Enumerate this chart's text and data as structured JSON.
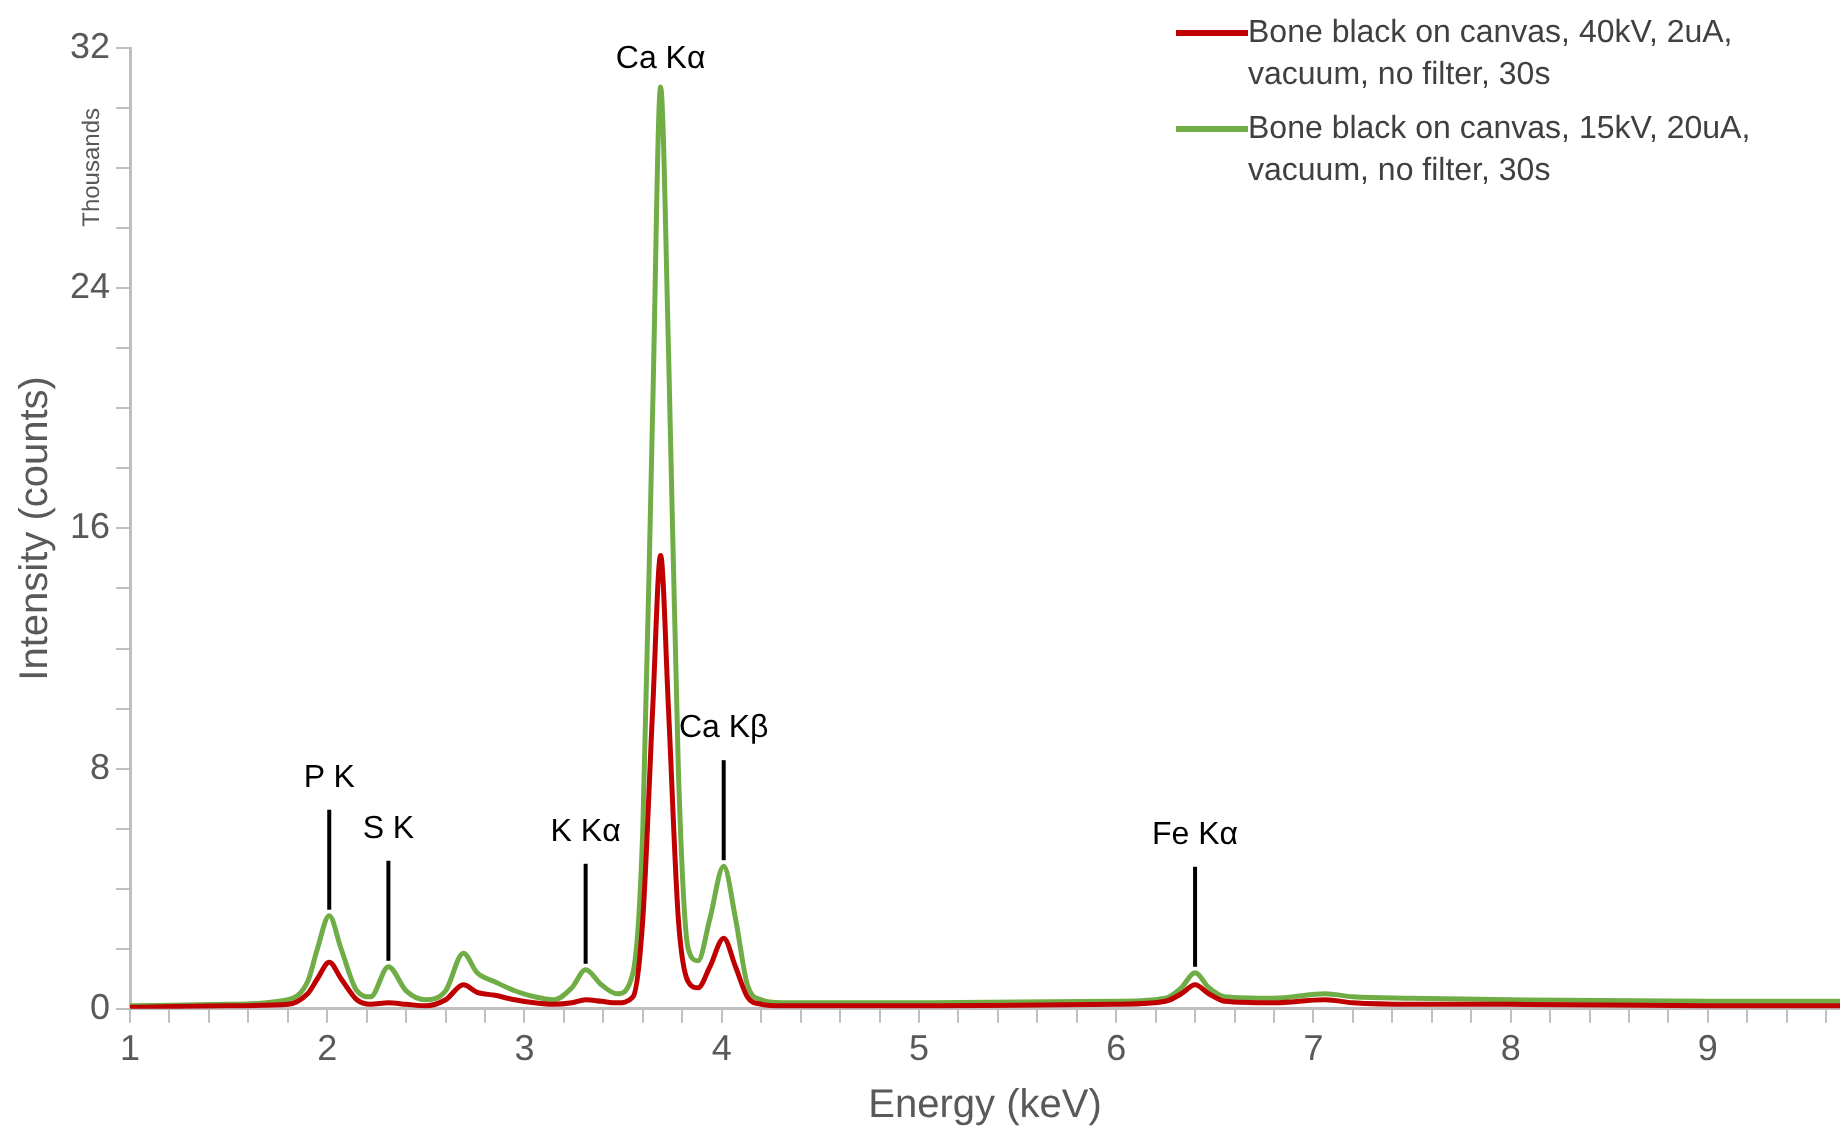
{
  "chart_data": {
    "type": "line",
    "xlabel": "Energy (keV)",
    "ylabel": "Intensity (counts)",
    "legend": "top right",
    "grid": false,
    "marker": "none",
    "line_style": "solid",
    "x": [
      1,
      1.5,
      1.8,
      1.9,
      1.95,
      2.01,
      2.07,
      2.15,
      2.22,
      2.31,
      2.4,
      2.5,
      2.6,
      2.69,
      2.76,
      2.85,
      2.95,
      3.05,
      3.15,
      3.24,
      3.31,
      3.39,
      3.47,
      3.55,
      3.6,
      3.65,
      3.69,
      3.73,
      3.78,
      3.83,
      3.88,
      3.94,
      4.01,
      4.07,
      4.13,
      4.2,
      4.3,
      5,
      6,
      6.25,
      6.33,
      6.4,
      6.47,
      6.55,
      6.8,
      7.06,
      7.2,
      7.5,
      8,
      9,
      9.67
    ],
    "series": [
      {
        "name": "Bone black on canvas, 40kV, 2uA, vacuum, no filter, 30s",
        "color": "#c00000",
        "values": [
          0.05,
          0.1,
          0.15,
          0.5,
          1.0,
          1.55,
          1.0,
          0.3,
          0.15,
          0.2,
          0.15,
          0.1,
          0.3,
          0.8,
          0.55,
          0.45,
          0.3,
          0.2,
          0.15,
          0.2,
          0.3,
          0.25,
          0.2,
          0.4,
          3,
          10,
          15.1,
          10,
          3,
          0.9,
          0.7,
          1.4,
          2.35,
          1.4,
          0.4,
          0.15,
          0.1,
          0.1,
          0.15,
          0.25,
          0.5,
          0.8,
          0.5,
          0.25,
          0.2,
          0.3,
          0.2,
          0.15,
          0.15,
          0.1,
          0.1
        ]
      },
      {
        "name": "Bone black on canvas, 15kV, 20uA, vacuum, no filter, 30s",
        "color": "#70ad47",
        "values": [
          0.1,
          0.15,
          0.3,
          0.9,
          2.0,
          3.1,
          2.0,
          0.6,
          0.4,
          1.4,
          0.6,
          0.3,
          0.6,
          1.85,
          1.2,
          0.9,
          0.6,
          0.4,
          0.3,
          0.7,
          1.3,
          0.8,
          0.5,
          1.2,
          6,
          20,
          30.7,
          22,
          8,
          2.0,
          1.6,
          3.0,
          4.75,
          3.0,
          0.8,
          0.3,
          0.2,
          0.2,
          0.25,
          0.35,
          0.7,
          1.2,
          0.7,
          0.4,
          0.35,
          0.5,
          0.4,
          0.35,
          0.3,
          0.25,
          0.25
        ]
      }
    ],
    "xlim": [
      1,
      9.67
    ],
    "xticks": [
      1,
      {
        "value": 1.2,
        "label": null
      },
      {
        "value": 1.4,
        "label": null
      },
      {
        "value": 1.6,
        "label": null
      },
      {
        "value": 1.8,
        "label": null
      },
      2,
      {
        "value": 2.2,
        "label": null
      },
      {
        "value": 2.4,
        "label": null
      },
      {
        "value": 2.6,
        "label": null
      },
      {
        "value": 2.8,
        "label": null
      },
      3,
      {
        "value": 3.2,
        "label": null
      },
      {
        "value": 3.4,
        "label": null
      },
      {
        "value": 3.6,
        "label": null
      },
      {
        "value": 3.8,
        "label": null
      },
      4,
      {
        "value": 4.2,
        "label": null
      },
      {
        "value": 4.4,
        "label": null
      },
      {
        "value": 4.6,
        "label": null
      },
      {
        "value": 4.8,
        "label": null
      },
      5,
      {
        "value": 5.2,
        "label": null
      },
      {
        "value": 5.4,
        "label": null
      },
      {
        "value": 5.6,
        "label": null
      },
      {
        "value": 5.8,
        "label": null
      },
      6,
      {
        "value": 6.2,
        "label": null
      },
      {
        "value": 6.4,
        "label": null
      },
      {
        "value": 6.6,
        "label": null
      },
      {
        "value": 6.8,
        "label": null
      },
      7,
      {
        "value": 7.2,
        "label": null
      },
      {
        "value": 7.4,
        "label": null
      },
      {
        "value": 7.6,
        "label": null
      },
      {
        "value": 7.8,
        "label": null
      },
      8,
      {
        "value": 8.2,
        "label": null
      },
      {
        "value": 8.4,
        "label": null
      },
      {
        "value": 8.6,
        "label": null
      },
      {
        "value": 8.8,
        "label": null
      },
      9,
      {
        "value": 9.2,
        "label": null
      },
      {
        "value": 9.4,
        "label": null
      },
      {
        "value": 9.6,
        "label": null
      }
    ],
    "ylim": [
      0,
      32
    ],
    "yticks": [
      0,
      {
        "value": 2,
        "label": null
      },
      {
        "value": 4,
        "label": null
      },
      {
        "value": 6,
        "label": null
      },
      8,
      {
        "value": 10,
        "label": null
      },
      {
        "value": 12,
        "label": null
      },
      {
        "value": 14,
        "label": null
      },
      16,
      {
        "value": 18,
        "label": null
      },
      {
        "value": 20,
        "label": null
      },
      {
        "value": 22,
        "label": null
      },
      24,
      {
        "value": 26,
        "label": null
      },
      {
        "value": 28,
        "label": null
      },
      {
        "value": 30,
        "label": null
      },
      32
    ],
    "annotations": [
      "Thousands",
      {
        "text": "P K",
        "x": 2.01,
        "y": 3.1
      },
      {
        "text": "S K",
        "x": 2.31,
        "y": 1.4
      },
      {
        "text": "K Kα",
        "x": 3.31,
        "y": 1.3
      },
      {
        "text": "Ca Kα",
        "x": 3.69,
        "y": 30.7
      },
      {
        "text": "Ca Kβ",
        "x": 4.01,
        "y": 4.75
      },
      {
        "text": "Fe Kα",
        "x": 6.4,
        "y": 1.2
      }
    ]
  }
}
